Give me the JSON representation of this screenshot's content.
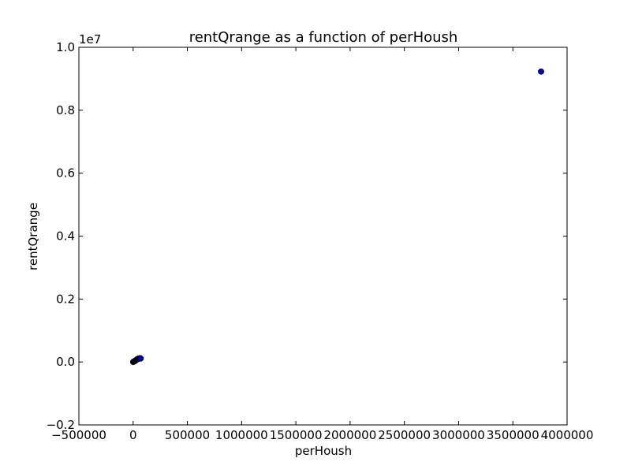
{
  "chart_data": {
    "type": "scatter",
    "title": "rentQrange as a function of perHoush",
    "xlabel": "perHoush",
    "ylabel": "rentQrange",
    "xlim": [
      -500000,
      4000000
    ],
    "ylim": [
      -2000000,
      10000000
    ],
    "x_ticks": [
      -500000,
      0,
      500000,
      1000000,
      1500000,
      2000000,
      2500000,
      3000000,
      3500000,
      4000000
    ],
    "x_tick_labels": [
      "−500000",
      "0",
      "500000",
      "1000000",
      "1500000",
      "2000000",
      "2500000",
      "3000000",
      "3500000",
      "4000000"
    ],
    "y_ticks": [
      -2000000,
      0,
      2000000,
      4000000,
      6000000,
      8000000,
      10000000
    ],
    "y_tick_labels": [
      "−0.2",
      "0.0",
      "0.2",
      "0.4",
      "0.6",
      "0.8",
      "1.0"
    ],
    "y_offset_label": "1e7",
    "grid": false,
    "marker_color": "#0000cc",
    "marker_edge": "#000000",
    "x": [
      0,
      5000,
      10000,
      15000,
      20000,
      25000,
      30000,
      35000,
      40000,
      45000,
      50000,
      55000,
      60000,
      65000,
      70000,
      3760000
    ],
    "y": [
      0,
      10000,
      20000,
      30000,
      40000,
      55000,
      70000,
      80000,
      90000,
      100000,
      105000,
      110000,
      115000,
      120000,
      110000,
      9230000
    ]
  }
}
